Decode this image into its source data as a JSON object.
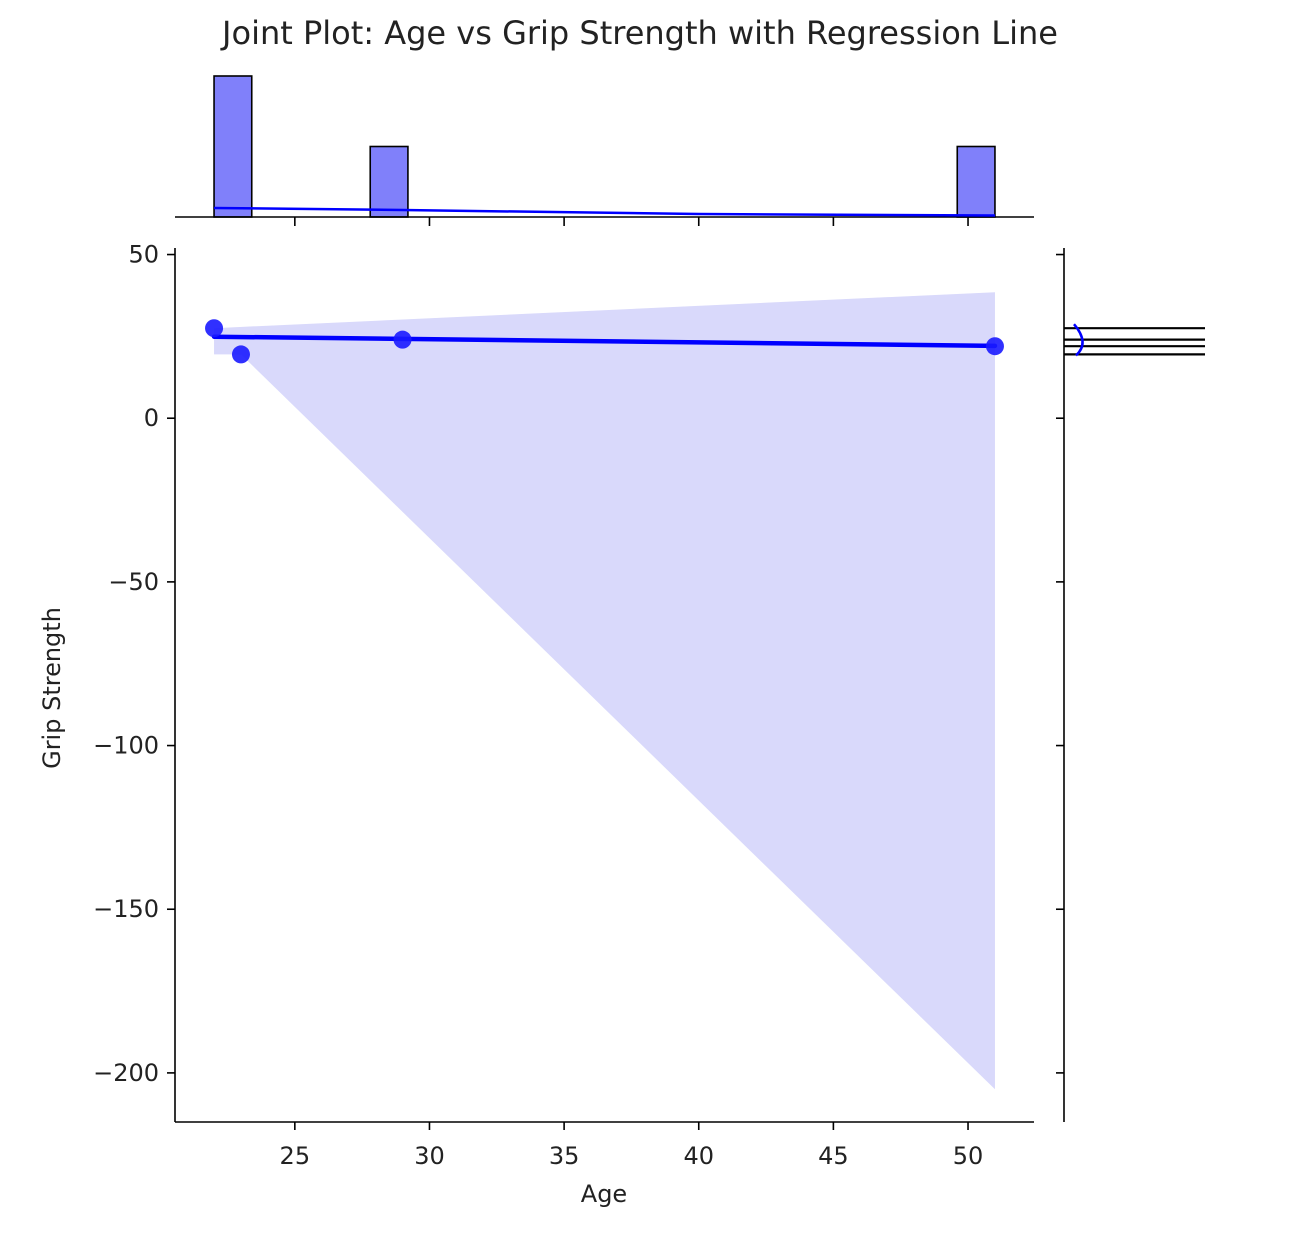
{
  "chart_data": {
    "type": "scatter",
    "title": "Joint Plot: Age vs Grip Strength with Regression Line",
    "xlabel": "Age",
    "ylabel": "Grip Strength",
    "xlim": [
      20.55,
      52.45
    ],
    "ylim": [
      -215,
      52
    ],
    "xticks": [
      25,
      30,
      35,
      40,
      45,
      50
    ],
    "yticks": [
      50,
      0,
      -50,
      -100,
      -150,
      -200
    ],
    "ytick_labels": [
      "50",
      "0",
      "−50",
      "−100",
      "−150",
      "−200"
    ],
    "colors": {
      "points": "#1a1aff",
      "line": "#0000ff",
      "band": "#d9d9fb",
      "hist": "#8080fa"
    },
    "points": [
      {
        "x": 22,
        "y": 27.5
      },
      {
        "x": 23,
        "y": 19.5
      },
      {
        "x": 29,
        "y": 24
      },
      {
        "x": 51,
        "y": 22
      }
    ],
    "regression": {
      "x": [
        22,
        51
      ],
      "y": [
        24.9,
        22.1
      ]
    },
    "confidence_band": {
      "upper": [
        [
          22,
          27.5
        ],
        [
          51,
          38.5
        ]
      ],
      "lower": [
        [
          22,
          19.5
        ],
        [
          23,
          19.5
        ],
        [
          51,
          -205
        ]
      ]
    },
    "marginal_x_hist": {
      "bins": [
        [
          22,
          23.4
        ],
        [
          27.8,
          29.2
        ],
        [
          49.6,
          51
        ]
      ],
      "counts": [
        2,
        1,
        1
      ]
    },
    "marginal_y_hist": {
      "y_values": [
        27.5,
        24,
        22,
        19.5
      ]
    }
  }
}
